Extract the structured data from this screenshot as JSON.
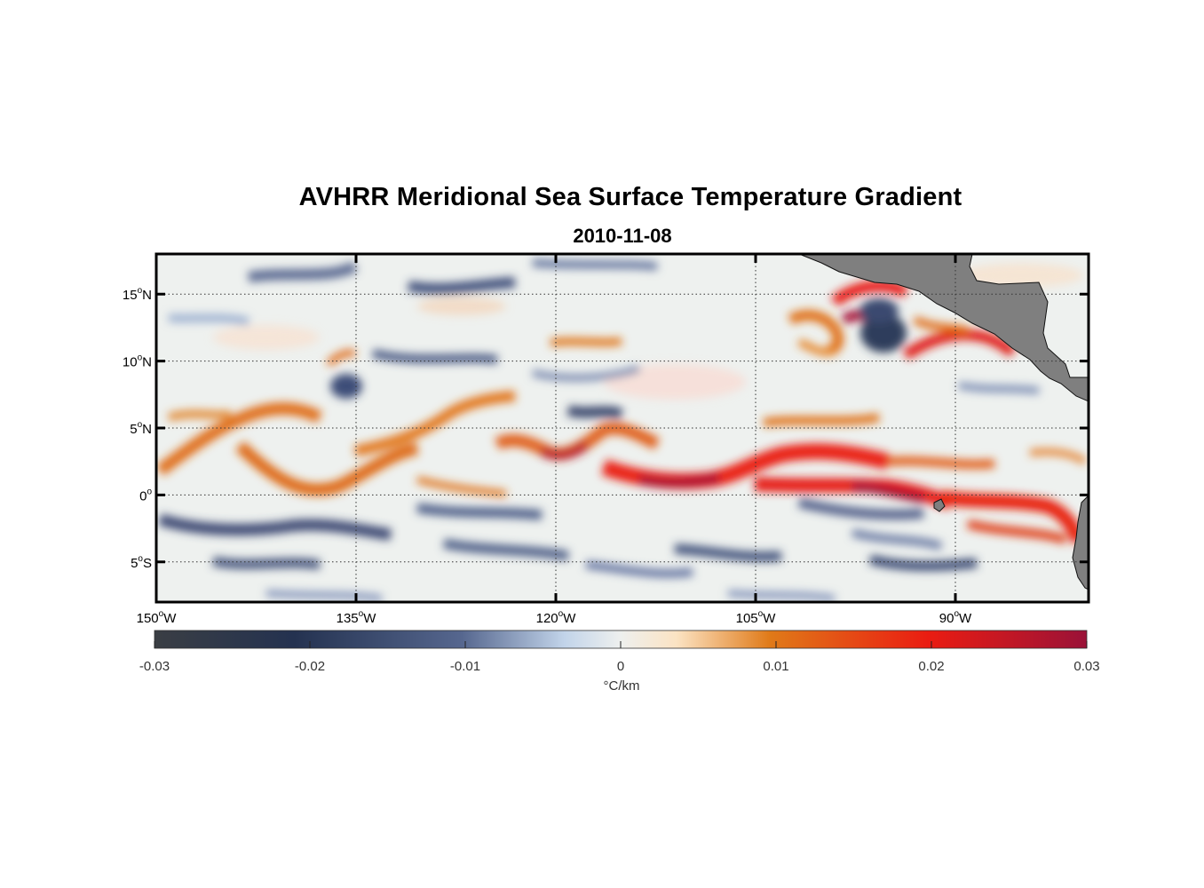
{
  "title": "AVHRR Meridional Sea Surface Temperature Gradient",
  "subtitle": "2010-11-08",
  "map": {
    "lon_range_deg": [
      -150,
      -80
    ],
    "lat_range_deg": [
      -8,
      18
    ],
    "lon_ticks": [
      {
        "value": -150,
        "deg": "150",
        "hemi": "W"
      },
      {
        "value": -135,
        "deg": "135",
        "hemi": "W"
      },
      {
        "value": -120,
        "deg": "120",
        "hemi": "W"
      },
      {
        "value": -105,
        "deg": "105",
        "hemi": "W"
      },
      {
        "value": -90,
        "deg": "90",
        "hemi": "W"
      }
    ],
    "lat_ticks": [
      {
        "value": 15,
        "deg": "15",
        "hemi": "N"
      },
      {
        "value": 10,
        "deg": "10",
        "hemi": "N"
      },
      {
        "value": 5,
        "deg": "5",
        "hemi": "N"
      },
      {
        "value": 0,
        "deg": "0",
        "hemi": ""
      },
      {
        "value": -5,
        "deg": "5",
        "hemi": "S"
      }
    ],
    "land_color": "#808080",
    "grid": "dotted"
  },
  "colorbar": {
    "ticks": [
      "-0.03",
      "-0.02",
      "-0.01",
      "0",
      "0.01",
      "0.02",
      "0.03"
    ],
    "range": [
      -0.03,
      0.03
    ],
    "unit_label": "°C/km",
    "colors": [
      {
        "stop": 0.0,
        "color": "#3a3e44"
      },
      {
        "stop": 0.15,
        "color": "#243250"
      },
      {
        "stop": 0.33,
        "color": "#56678f"
      },
      {
        "stop": 0.44,
        "color": "#c2d4ea"
      },
      {
        "stop": 0.5,
        "color": "#eef0ee"
      },
      {
        "stop": 0.56,
        "color": "#fbe3c3"
      },
      {
        "stop": 0.66,
        "color": "#e07a18"
      },
      {
        "stop": 0.83,
        "color": "#ea1c12"
      },
      {
        "stop": 1.0,
        "color": "#9a1238"
      }
    ]
  }
}
